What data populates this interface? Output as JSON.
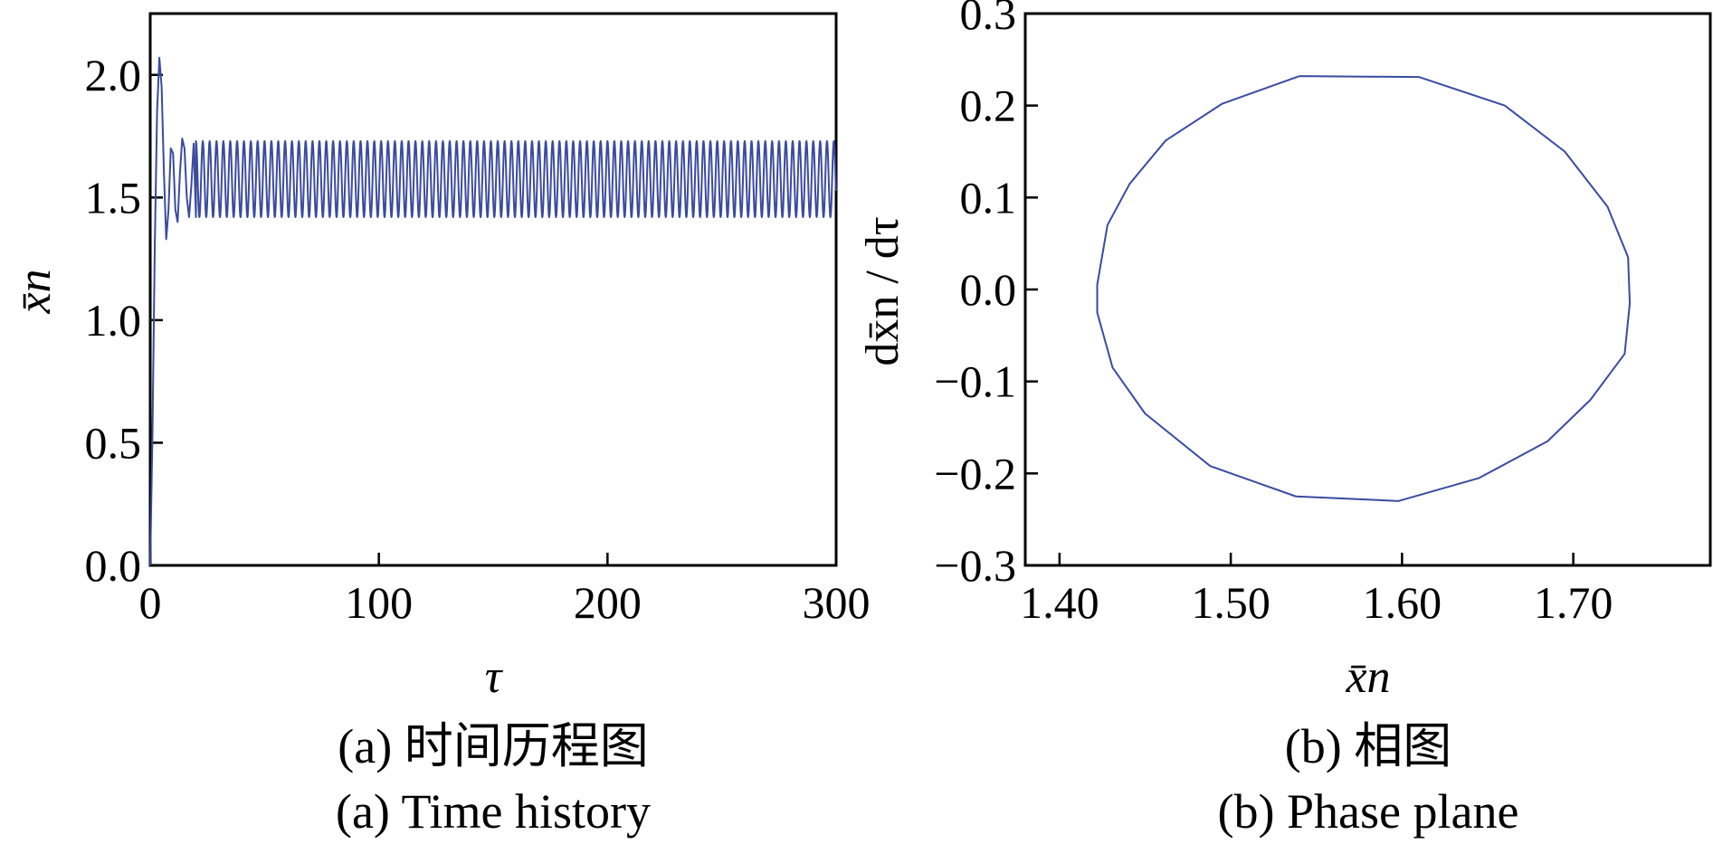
{
  "chart_data": [
    {
      "type": "line",
      "panel": "a",
      "caption_cn": "(a) 时间历程图",
      "caption_en": "(a) Time history",
      "xlabel": "τ",
      "ylabel": "x̄n",
      "xlim": [
        0,
        300
      ],
      "ylim": [
        0.0,
        2.25
      ],
      "xticks": [
        0,
        100,
        200,
        300
      ],
      "xtick_labels": [
        "0",
        "100",
        "200",
        "300"
      ],
      "yticks": [
        0.0,
        0.5,
        1.0,
        1.5,
        2.0
      ],
      "ytick_labels": [
        "0.0",
        "0.5",
        "1.0",
        "1.5",
        "2.0"
      ],
      "color": "#3a4ba0",
      "series": [
        {
          "x": [
            0,
            1,
            2,
            3,
            4,
            5,
            6,
            7,
            8,
            9,
            10,
            11,
            12,
            13,
            14,
            15,
            16,
            17,
            18,
            19,
            20,
            25,
            50,
            100,
            150,
            200,
            250,
            300
          ],
          "y": [
            0.0,
            0.55,
            1.3,
            1.85,
            2.07,
            1.95,
            1.6,
            1.33,
            1.45,
            1.7,
            1.68,
            1.45,
            1.4,
            1.6,
            1.74,
            1.7,
            1.5,
            1.42,
            1.55,
            1.72,
            1.42,
            1.73,
            1.57,
            1.57,
            1.57,
            1.57,
            1.57,
            1.57
          ]
        }
      ],
      "steady_state": {
        "mean": 1.575,
        "amplitude": 0.155,
        "period": 3.0
      }
    },
    {
      "type": "line",
      "panel": "b",
      "caption_cn": "(b) 相图",
      "caption_en": "(b) Phase plane",
      "xlabel": "x̄n",
      "ylabel": "dx̄n / dτ",
      "xlim": [
        1.38,
        1.78
      ],
      "ylim": [
        -0.3,
        0.3
      ],
      "xticks": [
        1.4,
        1.5,
        1.6,
        1.7
      ],
      "xtick_labels": [
        "1.40",
        "1.50",
        "1.60",
        "1.70"
      ],
      "yticks": [
        -0.3,
        -0.2,
        -0.1,
        0.0,
        0.1,
        0.2,
        0.3
      ],
      "ytick_labels": [
        "−0.3",
        "−0.2",
        "−0.1",
        "0.0",
        "0.1",
        "0.2",
        "0.3"
      ],
      "color": "#3a4ba0",
      "series": [
        {
          "x": [
            1.54,
            1.61,
            1.66,
            1.695,
            1.72,
            1.732,
            1.733,
            1.73,
            1.71,
            1.685,
            1.645,
            1.598,
            1.538,
            1.488,
            1.45,
            1.431,
            1.422,
            1.422,
            1.428,
            1.441,
            1.462,
            1.495,
            1.54
          ],
          "y": [
            0.232,
            0.231,
            0.2,
            0.15,
            0.09,
            0.035,
            -0.015,
            -0.07,
            -0.12,
            -0.165,
            -0.205,
            -0.23,
            -0.225,
            -0.192,
            -0.135,
            -0.085,
            -0.025,
            0.005,
            0.07,
            0.115,
            0.162,
            0.202,
            0.232
          ]
        }
      ]
    }
  ]
}
